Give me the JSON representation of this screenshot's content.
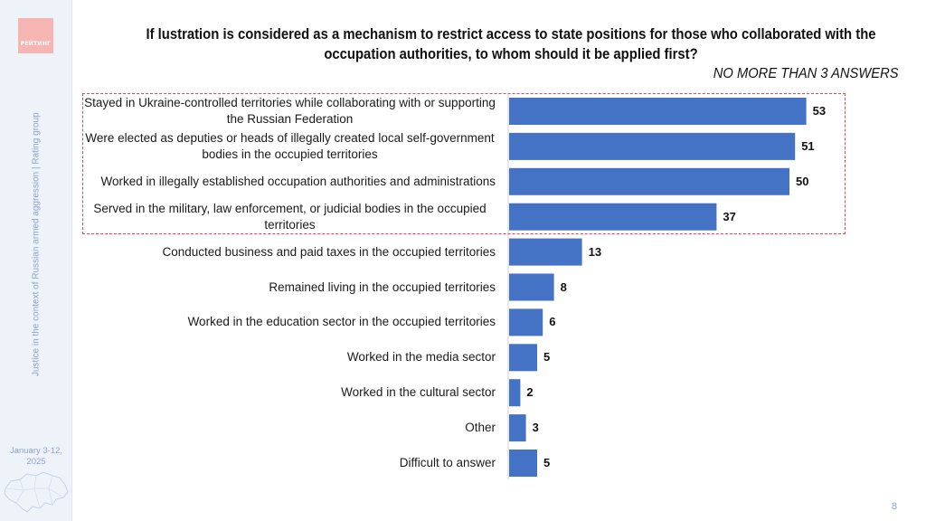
{
  "brand": {
    "logo_text": "РЕЙТИНГ"
  },
  "sidebar": {
    "vertical_text": "Justice in the context of Russian armed aggression | Rating group",
    "date_line1": "January 3-12,",
    "date_line2": "2025"
  },
  "header": {
    "title": "If lustration is considered as a mechanism to restrict access to state positions for those who collaborated with the occupation authorities, to whom should it be applied first?",
    "subtitle": "NO MORE THAN 3 ANSWERS"
  },
  "page_number": "8",
  "colors": {
    "bar": "#4472c4",
    "highlight": "#e0474c"
  },
  "chart_data": {
    "type": "bar",
    "orientation": "horizontal",
    "unit": "percent",
    "categories": [
      "Stayed in Ukraine-controlled territories while collaborating with or supporting the Russian Federation",
      "Were elected as deputies or heads of illegally created local self-government bodies in the occupied territories",
      "Worked in illegally established occupation authorities and administrations",
      "Served in the military, law enforcement, or judicial bodies in the occupied territories",
      "Conducted business and paid taxes in the occupied territories",
      "Remained living in the occupied territories",
      "Worked in the education sector in the occupied territories",
      "Worked in the media sector",
      "Worked in the cultural sector",
      "Other",
      "Difficult to answer"
    ],
    "values": [
      53,
      51,
      50,
      37,
      13,
      8,
      6,
      5,
      2,
      3,
      5
    ],
    "value_labels": [
      "53",
      "51",
      "50",
      "37",
      "13",
      "8",
      "6",
      "5",
      "2",
      "3",
      "5"
    ],
    "highlighted_categories": [
      0,
      1,
      2,
      3
    ],
    "xlim": [
      0,
      55
    ],
    "grid": false,
    "legend": "none"
  }
}
